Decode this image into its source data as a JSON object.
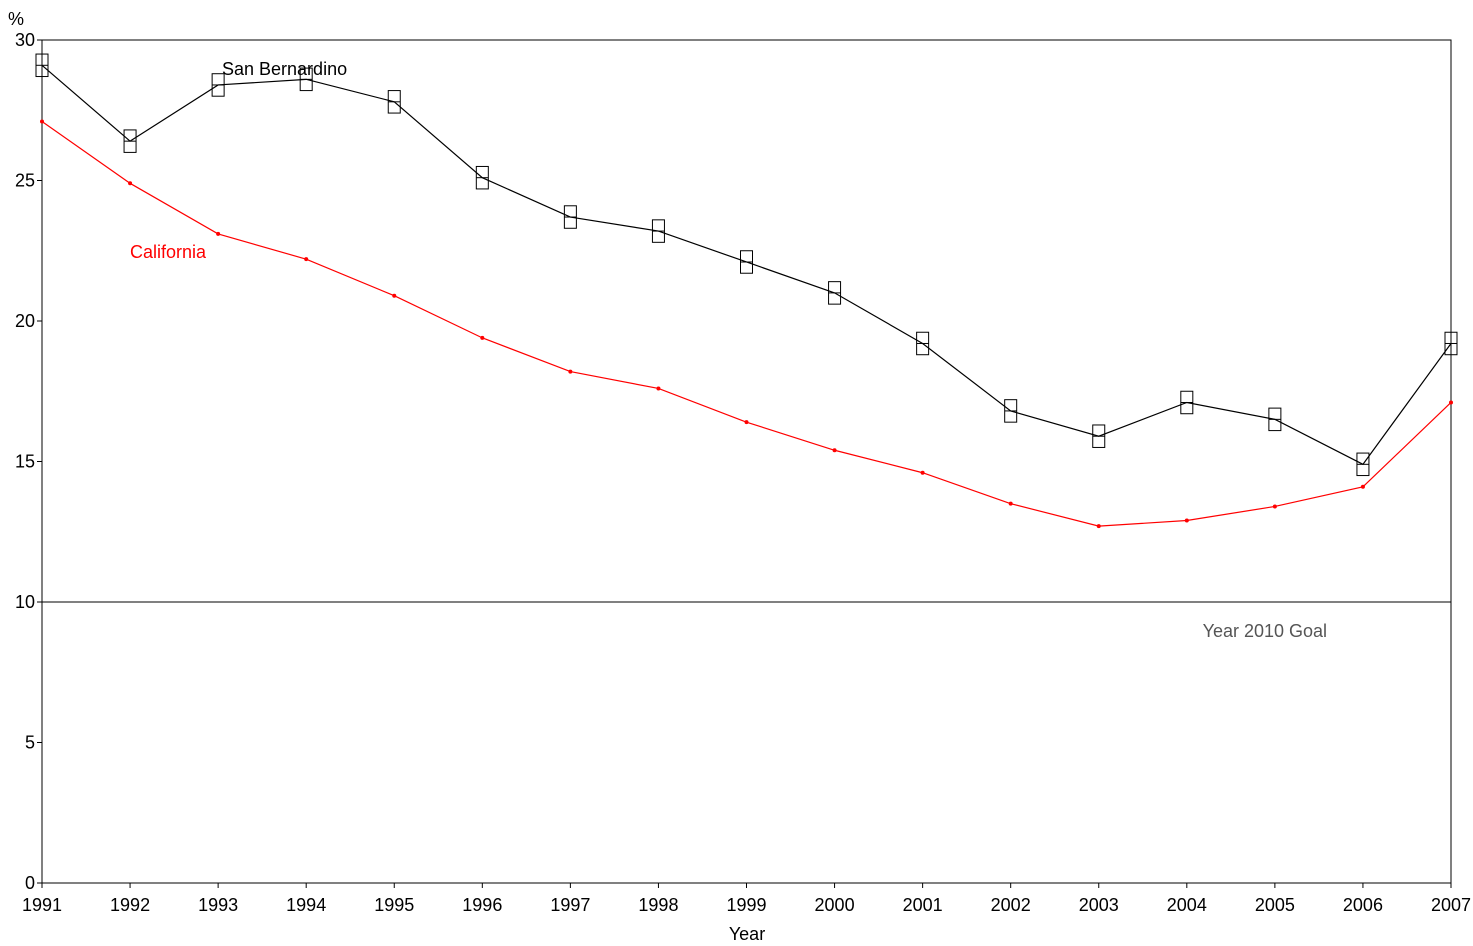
{
  "chart_data": {
    "type": "line",
    "y_unit_label": "%",
    "xlabel": "Year",
    "ylim": [
      0,
      30
    ],
    "y_ticks": [
      0,
      5,
      10,
      15,
      20,
      25,
      30
    ],
    "x": [
      "1991",
      "1992",
      "1993",
      "1994",
      "1995",
      "1996",
      "1997",
      "1998",
      "1999",
      "2000",
      "2001",
      "2002",
      "2003",
      "2004",
      "2005",
      "2006",
      "2007"
    ],
    "series": [
      {
        "name": "San Bernardino",
        "color": "#000000",
        "values": [
          29.1,
          26.4,
          28.4,
          28.6,
          27.8,
          25.1,
          23.7,
          23.2,
          22.1,
          21.0,
          19.2,
          16.8,
          15.9,
          17.1,
          16.5,
          14.9,
          19.2
        ],
        "ci_half_width": 0.4,
        "label_position": "near 1993-1994"
      },
      {
        "name": "California",
        "color": "#ff0000",
        "values": [
          27.1,
          24.9,
          23.1,
          22.2,
          20.9,
          19.4,
          18.2,
          17.6,
          16.4,
          15.4,
          14.6,
          13.5,
          12.7,
          12.9,
          13.4,
          14.1,
          17.1
        ],
        "label_position": "near 1992-1993"
      }
    ],
    "reference_line": {
      "value": 10,
      "label": "Year 2010 Goal",
      "color": "#000000",
      "label_color": "#555555"
    },
    "grid": false,
    "legend": "none (series labelled inline)"
  }
}
